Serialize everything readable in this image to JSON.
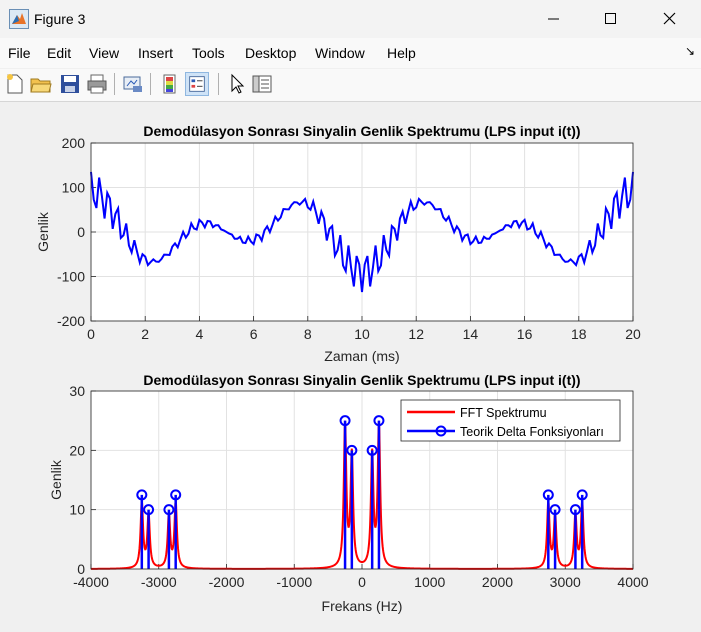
{
  "window": {
    "title": "Figure 3"
  },
  "menu": [
    "File",
    "Edit",
    "View",
    "Insert",
    "Tools",
    "Desktop",
    "Window",
    "Help"
  ],
  "toolbar": [
    "new-figure-icon",
    "open-file-icon",
    "save-icon",
    "print-icon",
    "link-plot-icon",
    "insert-colorbar-icon",
    "insert-legend-icon",
    "pointer-icon",
    "property-inspector-icon"
  ],
  "colors": {
    "blue": "#0000ff",
    "red": "#ff0000"
  },
  "chart_data": [
    {
      "type": "line",
      "title": "Demodülasyon Sonrası Sinyalin Genlik Spektrumu (LPS input i(t))",
      "xlabel": "Zaman (ms)",
      "ylabel": "Genlik",
      "xlim": [
        0,
        20
      ],
      "ylim": [
        -200,
        200
      ],
      "xticks": [
        "0",
        "2",
        "4",
        "6",
        "8",
        "10",
        "12",
        "14",
        "16",
        "18",
        "20"
      ],
      "yticks": [
        "-200",
        "-100",
        "0",
        "100",
        "200"
      ],
      "grid": true,
      "series": [
        {
          "color": "#0000ff",
          "description": "i(t) = 100cos(2π·50t)·[0.25cos(2π·3000t)+0.2cos(2π·3200t)] + 50cos(2π·250t) + 40cos(2π·150t) sampled every 0.1 ms"
        }
      ]
    },
    {
      "type": "line",
      "title": "Demodülasyon Sonrası Sinyalin Genlik Spektrumu (LPS input i(t))",
      "xlabel": "Frekans (Hz)",
      "ylabel": "Genlik",
      "xlim": [
        -4000,
        4000
      ],
      "ylim": [
        0,
        30
      ],
      "xticks": [
        "-4000",
        "-3000",
        "-2000",
        "-1000",
        "0",
        "1000",
        "2000",
        "3000",
        "4000"
      ],
      "yticks": [
        "0",
        "10",
        "20",
        "30"
      ],
      "grid": true,
      "legend": {
        "position": "top-right",
        "entries": [
          {
            "label": "FFT Spektrumu",
            "color": "#ff0000"
          },
          {
            "label": "Teorik Delta Fonksiyonları",
            "color": "#0000ff"
          }
        ]
      },
      "stems": {
        "x": [
          -3250,
          -3150,
          -2850,
          -2750,
          -250,
          -150,
          150,
          250,
          2750,
          2850,
          3150,
          3250
        ],
        "y": [
          12.5,
          10,
          10,
          12.5,
          25,
          20,
          20,
          25,
          12.5,
          10,
          10,
          12.5
        ]
      },
      "fft": {
        "centers": [
          -3250,
          -3150,
          -2850,
          -2750,
          -250,
          -150,
          150,
          250,
          2750,
          2850,
          3150,
          3250
        ],
        "peaks": [
          11,
          9,
          9,
          11,
          24,
          19,
          19,
          24,
          11,
          9,
          9,
          11
        ]
      }
    }
  ]
}
